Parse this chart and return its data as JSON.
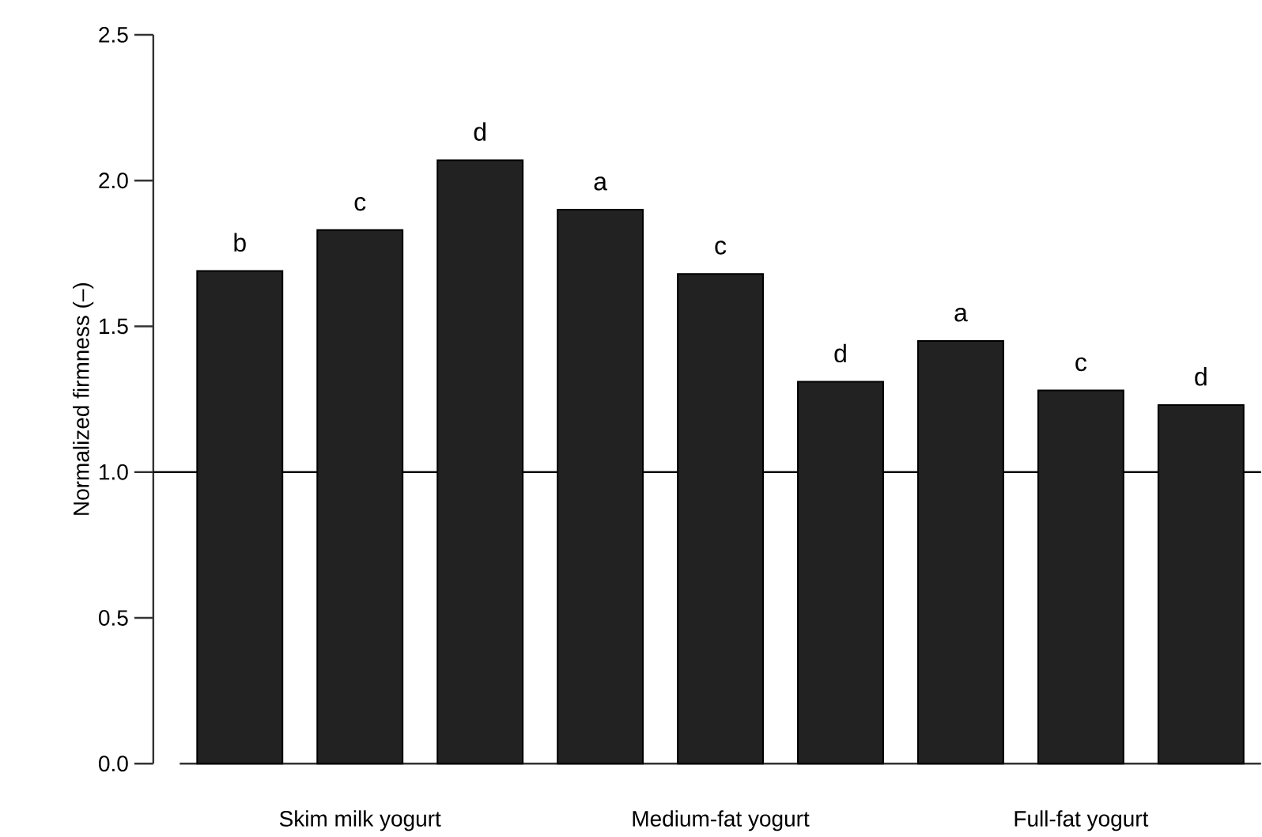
{
  "chart_data": {
    "type": "bar",
    "ylabel": "Normalized firmness (–)",
    "categories": [
      null,
      "Skim milk yogurt",
      null,
      null,
      "Medium-fat yogurt",
      null,
      null,
      "Full-fat yogurt",
      null
    ],
    "values": [
      1.69,
      1.83,
      2.07,
      1.9,
      1.68,
      1.31,
      1.45,
      1.28,
      1.23
    ],
    "value_labels": [
      "b",
      "c",
      "d",
      "a",
      "c",
      "d",
      "a",
      "c",
      "d"
    ],
    "color": "#222222",
    "ylim": [
      0,
      2.5
    ],
    "yticks": [
      {
        "value": 0,
        "label": "0.0"
      },
      0.5,
      {
        "value": 1,
        "label": "1.0"
      },
      1.5,
      {
        "value": 2,
        "label": "2.0"
      },
      2.5
    ],
    "ref_lines": [
      {
        "axis": "y",
        "value": 1.0,
        "color": "#000000"
      }
    ],
    "grid": false
  }
}
